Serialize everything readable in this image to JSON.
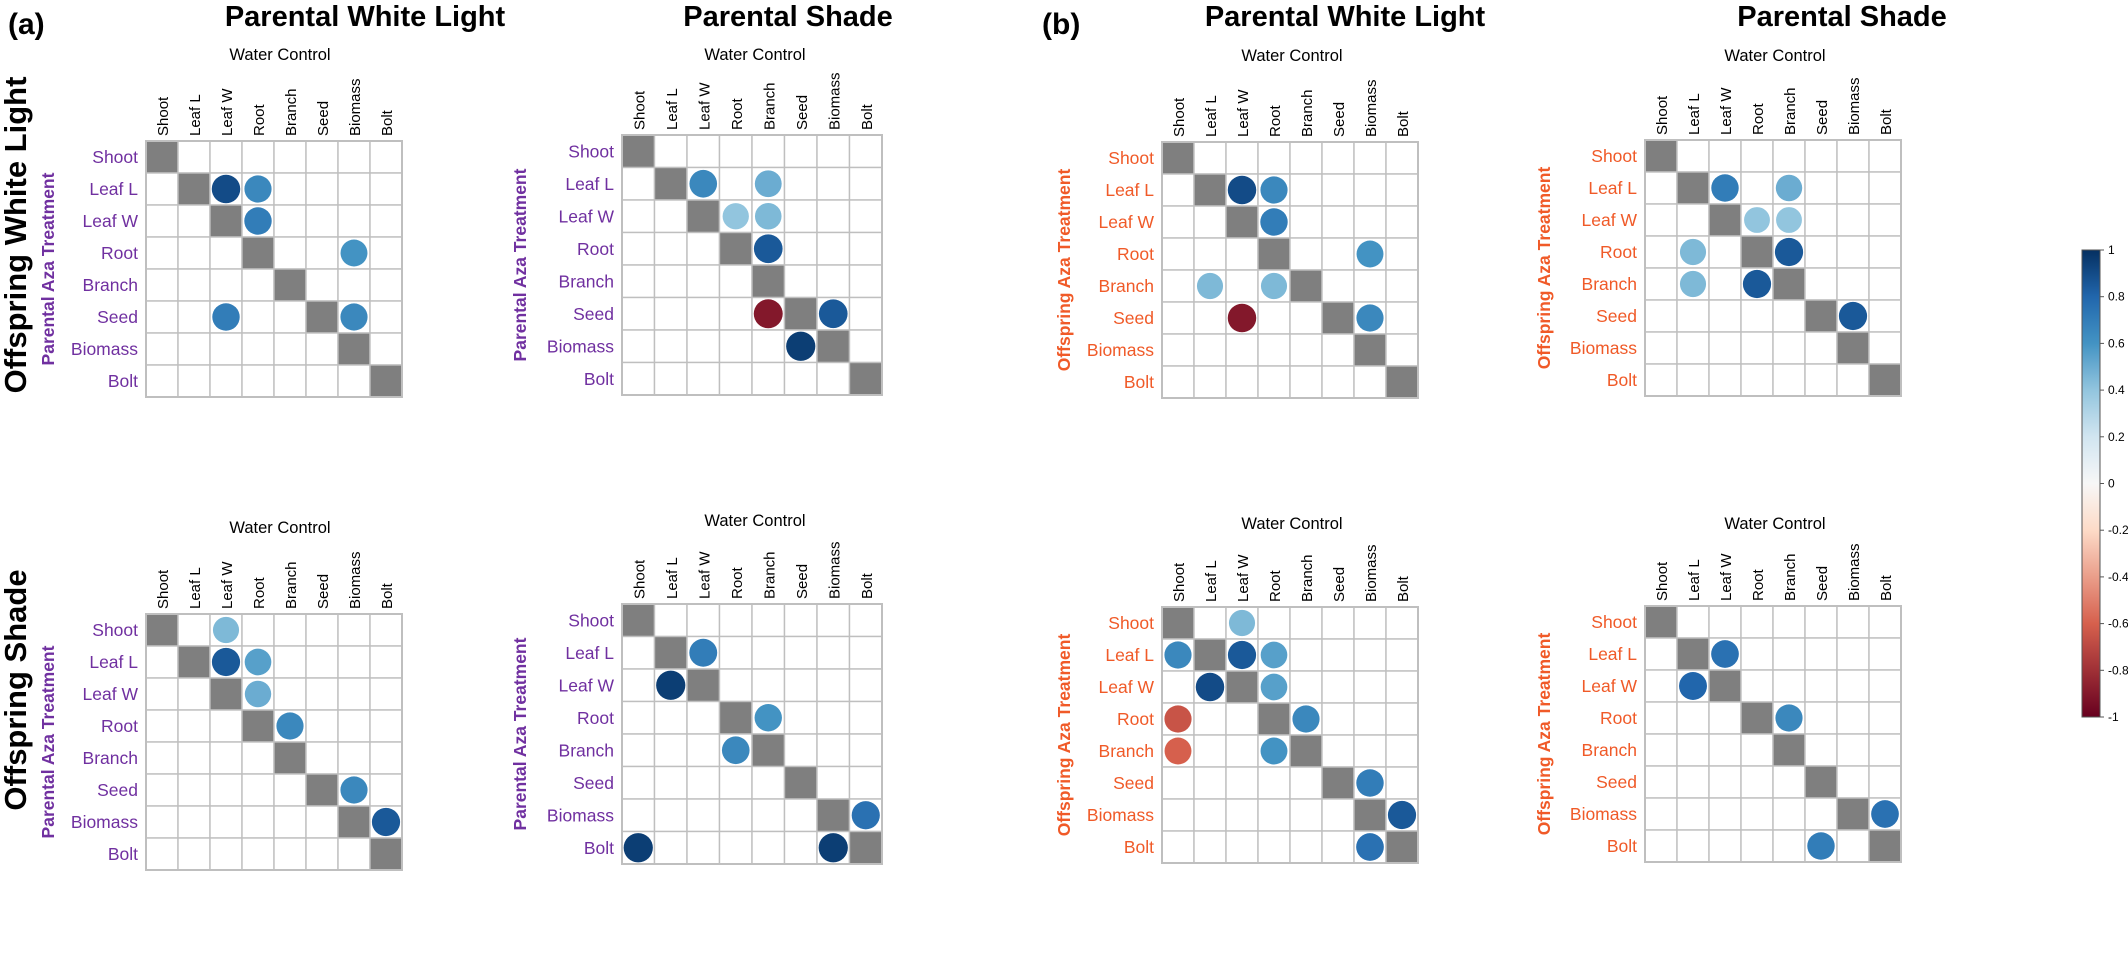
{
  "panel_labels": [
    "(a)",
    "(b)"
  ],
  "column_headers": [
    "Parental White Light",
    "Parental Shade",
    "Parental White Light",
    "Parental Shade"
  ],
  "row_headers_a": [
    "Offspring White Light",
    "Offspring Shade"
  ],
  "y_axis_labels": [
    "Parental Aza Treatment",
    "Offspring Aza Treatment"
  ],
  "matrix_subtitle": "Water Control",
  "variables": [
    "Shoot",
    "Leaf L",
    "Leaf W",
    "Root",
    "Branch",
    "Seed",
    "Biomass",
    "Bolt"
  ],
  "colors": {
    "label_a": "#7030a0",
    "label_b": "#f05a28",
    "diagonal": "#7f7f7f",
    "grid": "#bfbfbf",
    "positive_max": "#053061",
    "negative_max": "#67001f"
  },
  "colorbar": {
    "ticks": [
      "1",
      "0.8",
      "0.6",
      "0.4",
      "0.2",
      "0",
      "-0.2",
      "-0.4",
      "-0.6",
      "-0.8",
      "-1"
    ],
    "range": [
      -1,
      1
    ]
  },
  "chart_data": [
    {
      "type": "heatmap",
      "panel": "(a)",
      "title": "Parental White Light",
      "row_group": "Offspring White Light",
      "subtitle": "Water Control",
      "ylabel": "Parental Aza Treatment",
      "cells": [
        {
          "row": "Leaf L",
          "col": "Leaf W",
          "value": 0.9
        },
        {
          "row": "Leaf L",
          "col": "Root",
          "value": 0.65
        },
        {
          "row": "Leaf W",
          "col": "Root",
          "value": 0.7
        },
        {
          "row": "Root",
          "col": "Biomass",
          "value": 0.6
        },
        {
          "row": "Seed",
          "col": "Leaf W",
          "value": 0.7
        },
        {
          "row": "Seed",
          "col": "Biomass",
          "value": 0.65
        }
      ]
    },
    {
      "type": "heatmap",
      "panel": "(a)",
      "title": "Parental Shade",
      "row_group": "Offspring White Light",
      "subtitle": "Water Control",
      "ylabel": "Parental Aza Treatment",
      "cells": [
        {
          "row": "Leaf L",
          "col": "Leaf W",
          "value": 0.65
        },
        {
          "row": "Leaf L",
          "col": "Branch",
          "value": 0.5
        },
        {
          "row": "Leaf W",
          "col": "Root",
          "value": 0.4
        },
        {
          "row": "Leaf W",
          "col": "Branch",
          "value": 0.45
        },
        {
          "row": "Root",
          "col": "Branch",
          "value": 0.85
        },
        {
          "row": "Seed",
          "col": "Branch",
          "value": -0.9
        },
        {
          "row": "Seed",
          "col": "Biomass",
          "value": 0.85
        },
        {
          "row": "Biomass",
          "col": "Seed",
          "value": 0.95
        }
      ]
    },
    {
      "type": "heatmap",
      "panel": "(a)",
      "title": "Parental White Light",
      "row_group": "Offspring Shade",
      "subtitle": "Water Control",
      "ylabel": "Parental Aza Treatment",
      "cells": [
        {
          "row": "Shoot",
          "col": "Leaf W",
          "value": 0.45
        },
        {
          "row": "Leaf L",
          "col": "Leaf W",
          "value": 0.85
        },
        {
          "row": "Leaf L",
          "col": "Root",
          "value": 0.55
        },
        {
          "row": "Leaf W",
          "col": "Root",
          "value": 0.5
        },
        {
          "row": "Root",
          "col": "Branch",
          "value": 0.65
        },
        {
          "row": "Seed",
          "col": "Biomass",
          "value": 0.65
        },
        {
          "row": "Biomass",
          "col": "Bolt",
          "value": 0.85
        }
      ]
    },
    {
      "type": "heatmap",
      "panel": "(a)",
      "title": "Parental Shade",
      "row_group": "Offspring Shade",
      "subtitle": "Water Control",
      "ylabel": "Parental Aza Treatment",
      "cells": [
        {
          "row": "Leaf L",
          "col": "Leaf W",
          "value": 0.7
        },
        {
          "row": "Leaf W",
          "col": "Leaf L",
          "value": 0.95
        },
        {
          "row": "Root",
          "col": "Branch",
          "value": 0.6
        },
        {
          "row": "Branch",
          "col": "Root",
          "value": 0.65
        },
        {
          "row": "Biomass",
          "col": "Bolt",
          "value": 0.75
        },
        {
          "row": "Bolt",
          "col": "Shoot",
          "value": 0.95
        },
        {
          "row": "Bolt",
          "col": "Biomass",
          "value": 0.95
        }
      ]
    },
    {
      "type": "heatmap",
      "panel": "(b)",
      "title": "Parental White Light",
      "row_group": "top",
      "subtitle": "Water Control",
      "ylabel": "Offspring Aza Treatment",
      "cells": [
        {
          "row": "Leaf L",
          "col": "Leaf W",
          "value": 0.9
        },
        {
          "row": "Leaf L",
          "col": "Root",
          "value": 0.65
        },
        {
          "row": "Leaf W",
          "col": "Root",
          "value": 0.7
        },
        {
          "row": "Root",
          "col": "Biomass",
          "value": 0.6
        },
        {
          "row": "Branch",
          "col": "Leaf L",
          "value": 0.45
        },
        {
          "row": "Branch",
          "col": "Root",
          "value": 0.45
        },
        {
          "row": "Seed",
          "col": "Leaf W",
          "value": -0.9
        },
        {
          "row": "Seed",
          "col": "Biomass",
          "value": 0.65
        }
      ]
    },
    {
      "type": "heatmap",
      "panel": "(b)",
      "title": "Parental Shade",
      "row_group": "top",
      "subtitle": "Water Control",
      "ylabel": "Offspring Aza Treatment",
      "cells": [
        {
          "row": "Leaf L",
          "col": "Leaf W",
          "value": 0.7
        },
        {
          "row": "Leaf L",
          "col": "Branch",
          "value": 0.5
        },
        {
          "row": "Leaf W",
          "col": "Root",
          "value": 0.4
        },
        {
          "row": "Leaf W",
          "col": "Branch",
          "value": 0.4
        },
        {
          "row": "Root",
          "col": "Leaf L",
          "value": 0.45
        },
        {
          "row": "Root",
          "col": "Branch",
          "value": 0.85
        },
        {
          "row": "Branch",
          "col": "Leaf L",
          "value": 0.45
        },
        {
          "row": "Branch",
          "col": "Root",
          "value": 0.85
        },
        {
          "row": "Seed",
          "col": "Biomass",
          "value": 0.85
        }
      ]
    },
    {
      "type": "heatmap",
      "panel": "(b)",
      "title": "Parental White Light",
      "row_group": "bottom",
      "subtitle": "Water Control",
      "ylabel": "Offspring Aza Treatment",
      "cells": [
        {
          "row": "Shoot",
          "col": "Leaf W",
          "value": 0.45
        },
        {
          "row": "Leaf L",
          "col": "Shoot",
          "value": 0.65
        },
        {
          "row": "Leaf L",
          "col": "Leaf W",
          "value": 0.85
        },
        {
          "row": "Leaf L",
          "col": "Root",
          "value": 0.55
        },
        {
          "row": "Leaf W",
          "col": "Leaf L",
          "value": 0.9
        },
        {
          "row": "Leaf W",
          "col": "Root",
          "value": 0.55
        },
        {
          "row": "Root",
          "col": "Shoot",
          "value": -0.65
        },
        {
          "row": "Root",
          "col": "Branch",
          "value": 0.65
        },
        {
          "row": "Branch",
          "col": "Shoot",
          "value": -0.6
        },
        {
          "row": "Branch",
          "col": "Root",
          "value": 0.6
        },
        {
          "row": "Seed",
          "col": "Biomass",
          "value": 0.7
        },
        {
          "row": "Biomass",
          "col": "Bolt",
          "value": 0.85
        },
        {
          "row": "Bolt",
          "col": "Biomass",
          "value": 0.75
        }
      ]
    },
    {
      "type": "heatmap",
      "panel": "(b)",
      "title": "Parental Shade",
      "row_group": "bottom",
      "subtitle": "Water Control",
      "ylabel": "Offspring Aza Treatment",
      "cells": [
        {
          "row": "Leaf L",
          "col": "Leaf W",
          "value": 0.75
        },
        {
          "row": "Leaf W",
          "col": "Leaf L",
          "value": 0.8
        },
        {
          "row": "Root",
          "col": "Branch",
          "value": 0.65
        },
        {
          "row": "Biomass",
          "col": "Bolt",
          "value": 0.75
        },
        {
          "row": "Bolt",
          "col": "Seed",
          "value": 0.7
        }
      ]
    }
  ]
}
